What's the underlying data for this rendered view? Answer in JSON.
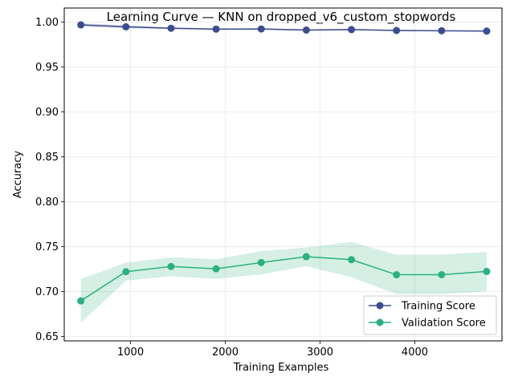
{
  "chart_data": {
    "type": "line",
    "title": "Learning Curve — KNN on dropped_v6_custom_stopwords",
    "xlabel": "Training Examples",
    "ylabel": "Accuracy",
    "xlim": [
      300,
      4920
    ],
    "ylim": [
      0.645,
      1.0155
    ],
    "xticks": [
      1000,
      2000,
      3000,
      4000
    ],
    "yticks": [
      0.65,
      0.7,
      0.75,
      0.8,
      0.85,
      0.9,
      0.95,
      1.0
    ],
    "ytick_labels": [
      "0.65",
      "0.70",
      "0.75",
      "0.80",
      "0.85",
      "0.90",
      "0.95",
      "1.00"
    ],
    "grid": true,
    "legend_position": "lower-right",
    "x": [
      475,
      951,
      1427,
      1903,
      2379,
      2855,
      3331,
      3807,
      4283,
      4759
    ],
    "series": [
      {
        "name": "Training Score",
        "color": "#3b4d8f",
        "values": [
          0.9967,
          0.9946,
          0.993,
          0.992,
          0.9922,
          0.991,
          0.9915,
          0.9905,
          0.9902,
          0.9898
        ],
        "band_upper": [
          0.9985,
          0.9962,
          0.994,
          0.9928,
          0.993,
          0.9918,
          0.9924,
          0.9912,
          0.9909,
          0.9904
        ],
        "band_lower": [
          0.9949,
          0.993,
          0.992,
          0.9912,
          0.9914,
          0.9902,
          0.9906,
          0.9898,
          0.9895,
          0.9892
        ]
      },
      {
        "name": "Validation Score",
        "color": "#2bb07f",
        "values": [
          0.6895,
          0.722,
          0.7278,
          0.7252,
          0.7322,
          0.7387,
          0.7354,
          0.7186,
          0.7187,
          0.7223
        ],
        "band_upper": [
          0.714,
          0.732,
          0.738,
          0.736,
          0.745,
          0.749,
          0.755,
          0.741,
          0.741,
          0.744
        ],
        "band_lower": [
          0.665,
          0.712,
          0.717,
          0.714,
          0.719,
          0.728,
          0.716,
          0.697,
          0.697,
          0.7
        ]
      }
    ]
  }
}
